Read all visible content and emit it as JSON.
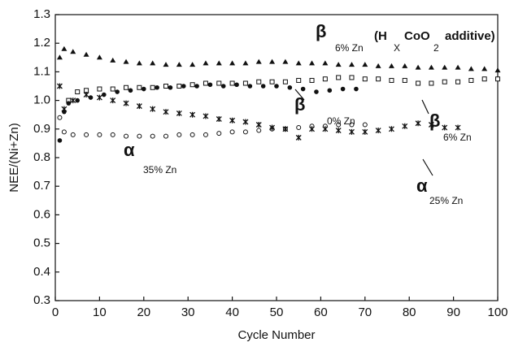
{
  "chart_data": {
    "type": "scatter",
    "xlabel": "Cycle Number",
    "ylabel": "NEE/(Ni+Zn)",
    "xlim": [
      0,
      100
    ],
    "xticks": [
      0,
      10,
      20,
      30,
      40,
      50,
      60,
      70,
      80,
      90,
      100
    ],
    "ylim": [
      0.3,
      1.3
    ],
    "yticks": [
      0.3,
      0.4,
      0.5,
      0.6,
      0.7,
      0.8,
      0.9,
      {
        "value": 1,
        "label": "1.0"
      },
      1.1,
      1.2,
      1.3
    ],
    "annotations": [
      "β",
      "6% Zn",
      "(H",
      "X",
      "CoO",
      "2",
      "additive)",
      "β",
      "0% Zn",
      "β",
      "6% Zn",
      "α",
      "35% Zn",
      "α",
      "25% Zn"
    ],
    "series": [
      {
        "marker": "triangle",
        "color": "#111",
        "x": [
          1,
          2,
          4,
          7,
          10,
          13,
          16,
          19,
          22,
          25,
          28,
          31,
          34,
          37,
          40,
          43,
          46,
          49,
          52,
          55,
          58,
          61,
          64,
          67,
          70,
          73,
          76,
          79,
          82,
          85,
          88,
          91,
          94,
          97,
          100
        ],
        "values": [
          1.15,
          1.18,
          1.17,
          1.16,
          1.15,
          1.14,
          1.135,
          1.13,
          1.13,
          1.125,
          1.125,
          1.125,
          1.13,
          1.13,
          1.13,
          1.13,
          1.135,
          1.135,
          1.135,
          1.13,
          1.13,
          1.13,
          1.125,
          1.125,
          1.125,
          1.12,
          1.12,
          1.12,
          1.115,
          1.115,
          1.115,
          1.115,
          1.11,
          1.11,
          1.105
        ]
      },
      {
        "marker": "square",
        "color": "#111",
        "x": [
          3,
          5,
          7,
          10,
          13,
          16,
          19,
          22,
          25,
          28,
          31,
          34,
          37,
          40,
          43,
          46,
          49,
          52,
          55,
          58,
          61,
          64,
          67,
          70,
          73,
          76,
          79,
          82,
          85,
          88,
          91,
          94,
          97,
          100
        ],
        "values": [
          1.0,
          1.03,
          1.035,
          1.04,
          1.04,
          1.045,
          1.045,
          1.045,
          1.05,
          1.05,
          1.055,
          1.06,
          1.06,
          1.06,
          1.06,
          1.065,
          1.065,
          1.065,
          1.07,
          1.07,
          1.075,
          1.08,
          1.08,
          1.075,
          1.075,
          1.07,
          1.07,
          1.06,
          1.06,
          1.065,
          1.065,
          1.07,
          1.075,
          1.075
        ]
      },
      {
        "marker": "dot",
        "color": "#111",
        "x": [
          1,
          2,
          3,
          5,
          8,
          11,
          14,
          17,
          20,
          23,
          26,
          29,
          32,
          35,
          38,
          41,
          44,
          47,
          50,
          53,
          56,
          59,
          62,
          65,
          68
        ],
        "values": [
          0.86,
          0.96,
          0.99,
          1.0,
          1.01,
          1.02,
          1.03,
          1.035,
          1.04,
          1.045,
          1.045,
          1.05,
          1.05,
          1.055,
          1.05,
          1.055,
          1.05,
          1.05,
          1.05,
          1.045,
          1.04,
          1.03,
          1.035,
          1.04,
          1.04
        ]
      },
      {
        "marker": "circle",
        "color": "#111",
        "x": [
          1,
          2,
          4,
          7,
          10,
          13,
          16,
          19,
          22,
          25,
          28,
          31,
          34,
          37,
          40,
          43,
          46,
          49,
          52,
          55,
          58,
          61,
          64,
          67,
          70
        ],
        "values": [
          0.94,
          0.89,
          0.88,
          0.88,
          0.88,
          0.88,
          0.875,
          0.875,
          0.875,
          0.875,
          0.88,
          0.88,
          0.88,
          0.885,
          0.89,
          0.89,
          0.895,
          0.9,
          0.9,
          0.905,
          0.91,
          0.91,
          0.915,
          0.915,
          0.915
        ]
      },
      {
        "marker": "star",
        "color": "#111",
        "x": [
          1,
          2,
          4,
          7,
          10,
          13,
          16,
          19,
          22,
          25,
          28,
          31,
          34,
          37,
          40,
          43,
          46,
          49,
          52,
          55,
          58,
          61,
          64,
          67,
          70,
          73,
          76,
          79,
          82,
          85,
          88,
          91
        ],
        "values": [
          1.05,
          0.97,
          1.0,
          1.02,
          1.01,
          1.0,
          0.99,
          0.98,
          0.97,
          0.96,
          0.955,
          0.95,
          0.945,
          0.935,
          0.93,
          0.925,
          0.915,
          0.905,
          0.9,
          0.87,
          0.9,
          0.9,
          0.895,
          0.89,
          0.89,
          0.895,
          0.9,
          0.91,
          0.92,
          0.915,
          0.905,
          0.905
        ]
      }
    ]
  }
}
